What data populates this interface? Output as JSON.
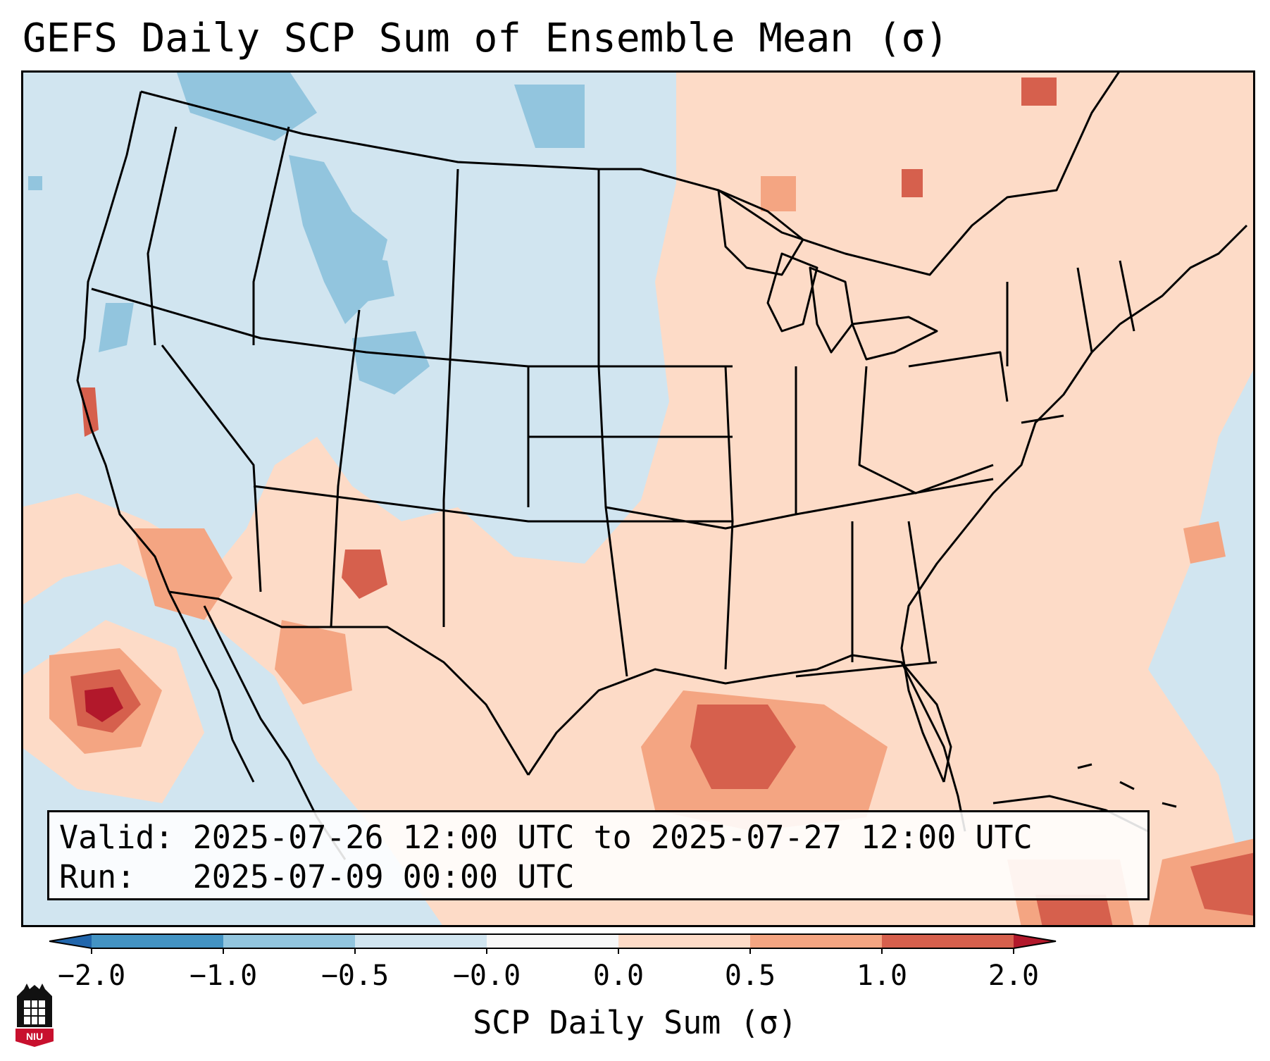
{
  "title": "GEFS Daily SCP Sum of Ensemble Mean (σ)",
  "info": {
    "valid_label": "Valid:",
    "valid_value": "2025-07-26 12:00 UTC to 2025-07-27 12:00 UTC",
    "run_label": "Run:",
    "run_value": "2025-07-09 00:00 UTC"
  },
  "colorbar": {
    "label": "SCP Daily Sum (σ)",
    "ticks": [
      "−2.0",
      "−1.0",
      "−0.5",
      "−0.0",
      "0.0",
      "0.5",
      "1.0",
      "2.0"
    ],
    "bins": [
      {
        "from": -2.0,
        "to": -1.0,
        "color": "#4393c3"
      },
      {
        "from": -1.0,
        "to": -0.5,
        "color": "#92c5de"
      },
      {
        "from": -0.5,
        "to": -0.0,
        "color": "#d1e5f0"
      },
      {
        "from": -0.0,
        "to": 0.0,
        "color": "#f7f7f7"
      },
      {
        "from": 0.0,
        "to": 0.5,
        "color": "#fddbc7"
      },
      {
        "from": 0.5,
        "to": 1.0,
        "color": "#f4a582"
      },
      {
        "from": 1.0,
        "to": 2.0,
        "color": "#d6604d"
      }
    ],
    "under_color": "#2166ac",
    "over_color": "#b2182b"
  },
  "map": {
    "background_color": "#d1e5f0",
    "border_color": "#000000"
  },
  "logo": {
    "text": "NIU",
    "color": "#c8102e"
  }
}
